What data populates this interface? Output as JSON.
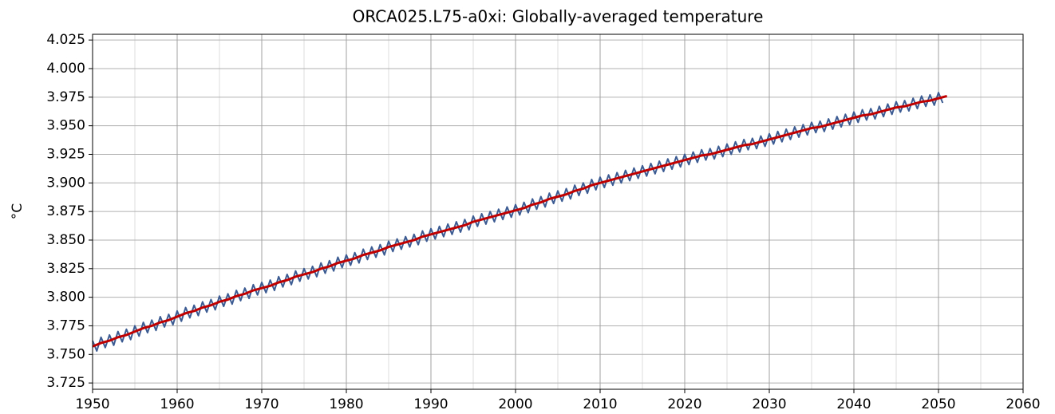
{
  "chart_data": {
    "type": "line",
    "title": "ORCA025.L75-a0xi: Globally-averaged temperature",
    "y_label": "°C",
    "xlim": [
      1950,
      2060
    ],
    "xticks": [
      1950,
      1960,
      1970,
      1980,
      1990,
      2000,
      2010,
      2020,
      2030,
      2040,
      2050,
      2060
    ],
    "xminorticks": [
      1955,
      1965,
      1975,
      1985,
      1995,
      2005,
      2015,
      2025,
      2035,
      2045,
      2055
    ],
    "ylim": [
      3.7195,
      4.03
    ],
    "yticks": [
      3.725,
      {
        "value": 3.75,
        "label": "3.750"
      },
      3.775,
      {
        "value": 3.8,
        "label": "3.800"
      },
      3.825,
      {
        "value": 3.85,
        "label": "3.850"
      },
      3.875,
      {
        "value": 3.9,
        "label": "3.900"
      },
      3.925,
      {
        "value": 3.95,
        "label": "3.950"
      },
      3.975,
      {
        "value": 4.0,
        "label": "4.000"
      },
      4.025
    ],
    "grid": true,
    "series": [
      {
        "color": "#3b5b92",
        "x": [
          1950,
          1950.5,
          1951,
          1951.5,
          1952,
          1952.5,
          1953,
          1953.5,
          1954,
          1954.5,
          1955,
          1955.5,
          1956,
          1956.5,
          1957,
          1957.5,
          1958,
          1958.5,
          1959,
          1959.5,
          1960,
          1960.5,
          1961,
          1961.5,
          1962,
          1962.5,
          1963,
          1963.5,
          1964,
          1964.5,
          1965,
          1965.5,
          1966,
          1966.5,
          1967,
          1967.5,
          1968,
          1968.5,
          1969,
          1969.5,
          1970,
          1970.5,
          1971,
          1971.5,
          1972,
          1972.5,
          1973,
          1973.5,
          1974,
          1974.5,
          1975,
          1975.5,
          1976,
          1976.5,
          1977,
          1977.5,
          1978,
          1978.5,
          1979,
          1979.5,
          1980,
          1980.5,
          1981,
          1981.5,
          1982,
          1982.5,
          1983,
          1983.5,
          1984,
          1984.5,
          1985,
          1985.5,
          1986,
          1986.5,
          1987,
          1987.5,
          1988,
          1988.5,
          1989,
          1989.5,
          1990,
          1990.5,
          1991,
          1991.5,
          1992,
          1992.5,
          1993,
          1993.5,
          1994,
          1994.5,
          1995,
          1995.5,
          1996,
          1996.5,
          1997,
          1997.5,
          1998,
          1998.5,
          1999,
          1999.5,
          2000,
          2000.5,
          2001,
          2001.5,
          2002,
          2002.5,
          2003,
          2003.5,
          2004,
          2004.5,
          2005,
          2005.5,
          2006,
          2006.5,
          2007,
          2007.5,
          2008,
          2008.5,
          2009,
          2009.5,
          2010,
          2010.5,
          2011,
          2011.5,
          2012,
          2012.5,
          2013,
          2013.5,
          2014,
          2014.5,
          2015,
          2015.5,
          2016,
          2016.5,
          2017,
          2017.5,
          2018,
          2018.5,
          2019,
          2019.5,
          2020,
          2020.5,
          2021,
          2021.5,
          2022,
          2022.5,
          2023,
          2023.5,
          2024,
          2024.5,
          2025,
          2025.5,
          2026,
          2026.5,
          2027,
          2027.5,
          2028,
          2028.5,
          2029,
          2029.5,
          2030,
          2030.5,
          2031,
          2031.5,
          2032,
          2032.5,
          2033,
          2033.5,
          2034,
          2034.5,
          2035,
          2035.5,
          2036,
          2036.5,
          2037,
          2037.5,
          2038,
          2038.5,
          2039,
          2039.5,
          2040,
          2040.5,
          2041,
          2041.5,
          2042,
          2042.5,
          2043,
          2043.5,
          2044,
          2044.5,
          2045,
          2045.5,
          2046,
          2046.5,
          2047,
          2047.5,
          2048,
          2048.5,
          2049,
          2049.5,
          2050,
          2050.5
        ],
        "values": [
          3.762,
          3.753,
          3.765,
          3.756,
          3.767,
          3.758,
          3.77,
          3.761,
          3.772,
          3.763,
          3.775,
          3.766,
          3.778,
          3.769,
          3.78,
          3.771,
          3.783,
          3.774,
          3.785,
          3.776,
          3.788,
          3.779,
          3.791,
          3.782,
          3.793,
          3.784,
          3.796,
          3.787,
          3.798,
          3.789,
          3.801,
          3.792,
          3.803,
          3.794,
          3.806,
          3.797,
          3.808,
          3.799,
          3.811,
          3.802,
          3.813,
          3.804,
          3.815,
          3.806,
          3.818,
          3.809,
          3.82,
          3.811,
          3.823,
          3.814,
          3.825,
          3.816,
          3.827,
          3.818,
          3.83,
          3.821,
          3.832,
          3.823,
          3.835,
          3.826,
          3.837,
          3.828,
          3.839,
          3.83,
          3.842,
          3.833,
          3.844,
          3.835,
          3.846,
          3.837,
          3.849,
          3.84,
          3.851,
          3.842,
          3.853,
          3.844,
          3.855,
          3.846,
          3.858,
          3.849,
          3.86,
          3.851,
          3.862,
          3.853,
          3.864,
          3.855,
          3.866,
          3.857,
          3.868,
          3.859,
          3.871,
          3.862,
          3.873,
          3.864,
          3.875,
          3.866,
          3.877,
          3.868,
          3.879,
          3.87,
          3.881,
          3.872,
          3.883,
          3.874,
          3.886,
          3.877,
          3.888,
          3.879,
          3.891,
          3.882,
          3.893,
          3.884,
          3.895,
          3.886,
          3.898,
          3.889,
          3.9,
          3.891,
          3.903,
          3.894,
          3.905,
          3.896,
          3.907,
          3.898,
          3.909,
          3.9,
          3.911,
          3.902,
          3.913,
          3.904,
          3.915,
          3.906,
          3.917,
          3.908,
          3.919,
          3.91,
          3.921,
          3.912,
          3.923,
          3.914,
          3.925,
          3.916,
          3.927,
          3.918,
          3.929,
          3.92,
          3.93,
          3.921,
          3.932,
          3.923,
          3.934,
          3.925,
          3.936,
          3.927,
          3.938,
          3.929,
          3.939,
          3.93,
          3.941,
          3.932,
          3.943,
          3.934,
          3.945,
          3.936,
          3.947,
          3.938,
          3.949,
          3.94,
          3.951,
          3.942,
          3.953,
          3.944,
          3.954,
          3.945,
          3.956,
          3.947,
          3.958,
          3.949,
          3.96,
          3.951,
          3.962,
          3.953,
          3.964,
          3.955,
          3.965,
          3.956,
          3.967,
          3.958,
          3.969,
          3.96,
          3.971,
          3.962,
          3.972,
          3.963,
          3.974,
          3.965,
          3.976,
          3.967,
          3.977,
          3.968,
          3.979,
          3.97
        ]
      },
      {
        "color": "#c00000",
        "x": [
          1950,
          1951,
          1952,
          1953,
          1954,
          1955,
          1956,
          1957,
          1958,
          1959,
          1960,
          1961,
          1962,
          1963,
          1964,
          1965,
          1966,
          1967,
          1968,
          1969,
          1970,
          1971,
          1972,
          1973,
          1974,
          1975,
          1976,
          1977,
          1978,
          1979,
          1980,
          1981,
          1982,
          1983,
          1984,
          1985,
          1986,
          1987,
          1988,
          1989,
          1990,
          1991,
          1992,
          1993,
          1994,
          1995,
          1996,
          1997,
          1998,
          1999,
          2000,
          2001,
          2002,
          2003,
          2004,
          2005,
          2006,
          2007,
          2008,
          2009,
          2010,
          2011,
          2012,
          2013,
          2014,
          2015,
          2016,
          2017,
          2018,
          2019,
          2020,
          2021,
          2022,
          2023,
          2024,
          2025,
          2026,
          2027,
          2028,
          2029,
          2030,
          2031,
          2032,
          2033,
          2034,
          2035,
          2036,
          2037,
          2038,
          2039,
          2040,
          2041,
          2042,
          2043,
          2044,
          2045,
          2046,
          2047,
          2048,
          2049,
          2050,
          2051
        ],
        "values": [
          3.757,
          3.76,
          3.762,
          3.765,
          3.767,
          3.77,
          3.773,
          3.775,
          3.778,
          3.78,
          3.783,
          3.786,
          3.788,
          3.791,
          3.793,
          3.796,
          3.798,
          3.801,
          3.803,
          3.806,
          3.808,
          3.81,
          3.813,
          3.815,
          3.818,
          3.82,
          3.822,
          3.825,
          3.827,
          3.83,
          3.832,
          3.834,
          3.837,
          3.839,
          3.841,
          3.844,
          3.846,
          3.848,
          3.85,
          3.853,
          3.855,
          3.857,
          3.859,
          3.861,
          3.863,
          3.866,
          3.868,
          3.87,
          3.872,
          3.874,
          3.876,
          3.878,
          3.881,
          3.883,
          3.886,
          3.888,
          3.89,
          3.893,
          3.895,
          3.898,
          3.9,
          3.902,
          3.904,
          3.906,
          3.908,
          3.91,
          3.912,
          3.914,
          3.916,
          3.918,
          3.92,
          3.922,
          3.924,
          3.925,
          3.927,
          3.929,
          3.931,
          3.933,
          3.934,
          3.936,
          3.938,
          3.94,
          3.942,
          3.944,
          3.946,
          3.948,
          3.949,
          3.951,
          3.953,
          3.955,
          3.957,
          3.959,
          3.96,
          3.962,
          3.964,
          3.966,
          3.967,
          3.969,
          3.971,
          3.972,
          3.974,
          3.976
        ]
      }
    ]
  }
}
